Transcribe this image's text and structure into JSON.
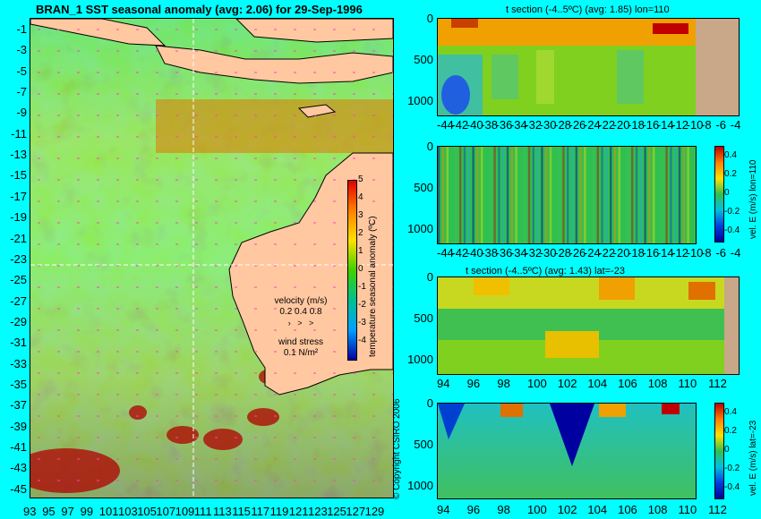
{
  "main_title": "BRAN_1 SST seasonal anomaly (avg: 2.06) for 29-Sep-1996",
  "map": {
    "lat_labels": [
      "-1",
      "-3",
      "-5",
      "-7",
      "-9",
      "-11",
      "-13",
      "-15",
      "-17",
      "-19",
      "-21",
      "-23",
      "-25",
      "-27",
      "-29",
      "-31",
      "-33",
      "-35",
      "-37",
      "-39",
      "-41",
      "-43",
      "-45"
    ],
    "lon_labels": [
      "93",
      "95",
      "97",
      "99",
      "101",
      "103",
      "105",
      "107",
      "109",
      "111",
      "113",
      "115",
      "117",
      "119",
      "121",
      "123",
      "125",
      "127",
      "129"
    ],
    "crosshair": {
      "lon": 110,
      "lat": -23
    },
    "legend": {
      "velocity_title": "velocity (m/s)",
      "velocity_values": "0.2 0.4 0.8",
      "wind_title": "wind stress",
      "wind_value": "0.1 N/m²"
    },
    "colorbar": {
      "label": "temperature seasonal anomaly (ºC)",
      "ticks": [
        "5",
        "4",
        "3",
        "2",
        "1",
        "0",
        "-1",
        "-2",
        "-3",
        "-4"
      ]
    }
  },
  "copyright": "© Copyright CSIRO 2006",
  "panels": [
    {
      "title": "t section (-4..5ºC) (avg: 1.85) lon=110",
      "y_ticks": [
        "0",
        "500",
        "1000"
      ],
      "x_ticks": [
        "-44",
        "-42",
        "-40",
        "-38",
        "-36",
        "-34",
        "-32",
        "-30",
        "-28",
        "-26",
        "-24",
        "-22",
        "-20",
        "-18",
        "-16",
        "-14",
        "-12",
        "-10",
        "-8",
        "-6",
        "-4"
      ]
    },
    {
      "title": "",
      "y_ticks": [
        "0",
        "500",
        "1000"
      ],
      "x_ticks": [
        "-44",
        "-42",
        "-40",
        "-38",
        "-36",
        "-34",
        "-32",
        "-30",
        "-28",
        "-26",
        "-24",
        "-22",
        "-20",
        "-18",
        "-16",
        "-14",
        "-12",
        "-10",
        "-8",
        "-6",
        "-4"
      ],
      "cb_label": "vel. E (m/s) lon=110",
      "cb_ticks": [
        "0.4",
        "0.2",
        "0",
        "-0.2",
        "-0.4"
      ]
    },
    {
      "title": "t section (-4..5ºC) (avg: 1.43) lat=-23",
      "y_ticks": [
        "0",
        "500",
        "1000"
      ],
      "x_ticks": [
        "94",
        "96",
        "98",
        "100",
        "102",
        "104",
        "106",
        "108",
        "110",
        "112"
      ]
    },
    {
      "title": "",
      "y_ticks": [
        "0",
        "500",
        "1000"
      ],
      "x_ticks": [
        "94",
        "96",
        "98",
        "100",
        "102",
        "104",
        "106",
        "108",
        "110",
        "112"
      ],
      "cb_label": "vel. E (m/s) lat=-23",
      "cb_ticks": [
        "0.4",
        "0.2",
        "0",
        "-0.2",
        "-0.4"
      ]
    }
  ],
  "colors": {
    "background": "#00ffff",
    "land": "#ffc8a0",
    "section_land": "#c8a888",
    "warm": "#c80000",
    "cold": "#0000a0"
  }
}
